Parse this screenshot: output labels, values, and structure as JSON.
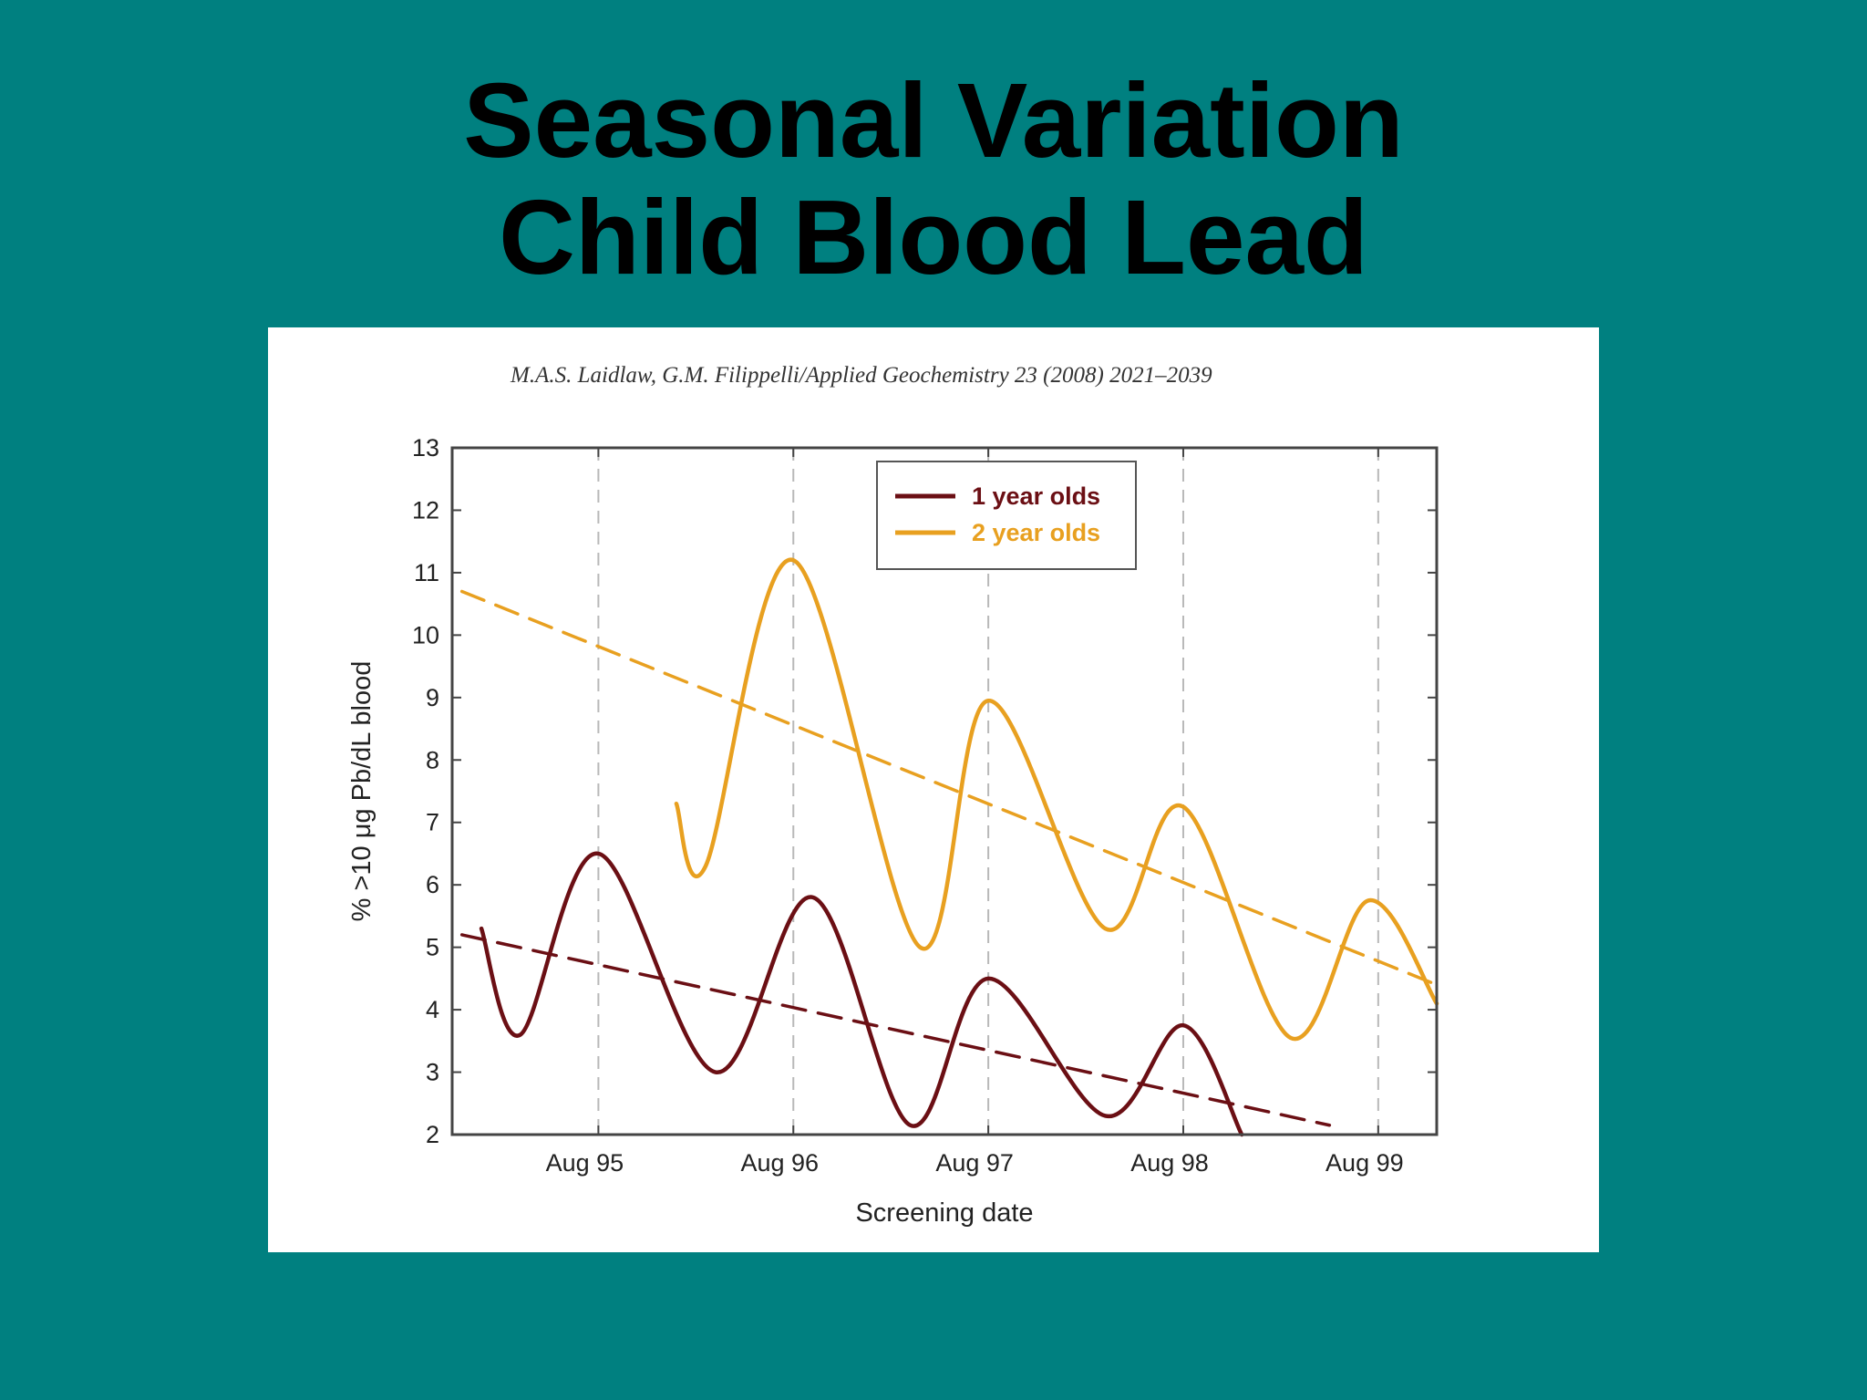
{
  "slide": {
    "title_line1": "Seasonal Variation",
    "title_line2": "Child Blood Lead",
    "background_color": "#008080"
  },
  "figure": {
    "citation": "M.A.S. Laidlaw, G.M. Filippelli/Applied Geochemistry 23 (2008) 2021–2039"
  },
  "chart_data": {
    "type": "line",
    "title": "",
    "xlabel": "Screening date",
    "ylabel": "% >10 μg Pb/dL blood",
    "x_unit": "years since Aug 95",
    "xlim": [
      -0.75,
      4.3
    ],
    "ylim": [
      2,
      13
    ],
    "yticks": [
      2,
      3,
      4,
      5,
      6,
      7,
      8,
      9,
      10,
      11,
      12,
      13
    ],
    "xticks": [
      {
        "x": 0,
        "label": "Aug 95"
      },
      {
        "x": 1,
        "label": "Aug 96"
      },
      {
        "x": 2,
        "label": "Aug 97"
      },
      {
        "x": 3,
        "label": "Aug 98"
      },
      {
        "x": 4,
        "label": "Aug 99"
      }
    ],
    "vertical_gridlines": "dashed at each Aug tick",
    "legend_position": "top-center",
    "series": [
      {
        "name": "1 year olds",
        "color": "#6b0f14",
        "style": "solid",
        "points": [
          [
            -0.6,
            5.3
          ],
          [
            -0.4,
            3.6
          ],
          [
            0,
            6.5
          ],
          [
            0.6,
            3.0
          ],
          [
            1.1,
            5.8
          ],
          [
            1.6,
            2.15
          ],
          [
            2.0,
            4.5
          ],
          [
            2.6,
            2.3
          ],
          [
            3.0,
            3.75
          ],
          [
            3.3,
            2.0
          ]
        ]
      },
      {
        "name": "2 year olds",
        "color": "#e8a020",
        "style": "solid",
        "points": [
          [
            0.4,
            7.3
          ],
          [
            0.55,
            6.3
          ],
          [
            1.0,
            11.2
          ],
          [
            1.65,
            5.0
          ],
          [
            2.0,
            8.95
          ],
          [
            2.6,
            5.3
          ],
          [
            3.0,
            7.25
          ],
          [
            3.55,
            3.55
          ],
          [
            3.95,
            5.75
          ],
          [
            4.3,
            4.1
          ]
        ]
      },
      {
        "name": "1 year olds trend",
        "color": "#6b0f14",
        "style": "dashed",
        "points": [
          [
            -0.7,
            5.2
          ],
          [
            3.75,
            2.15
          ]
        ]
      },
      {
        "name": "2 year olds trend",
        "color": "#e8a020",
        "style": "dashed",
        "points": [
          [
            -0.7,
            10.7
          ],
          [
            4.3,
            4.4
          ]
        ]
      }
    ]
  }
}
